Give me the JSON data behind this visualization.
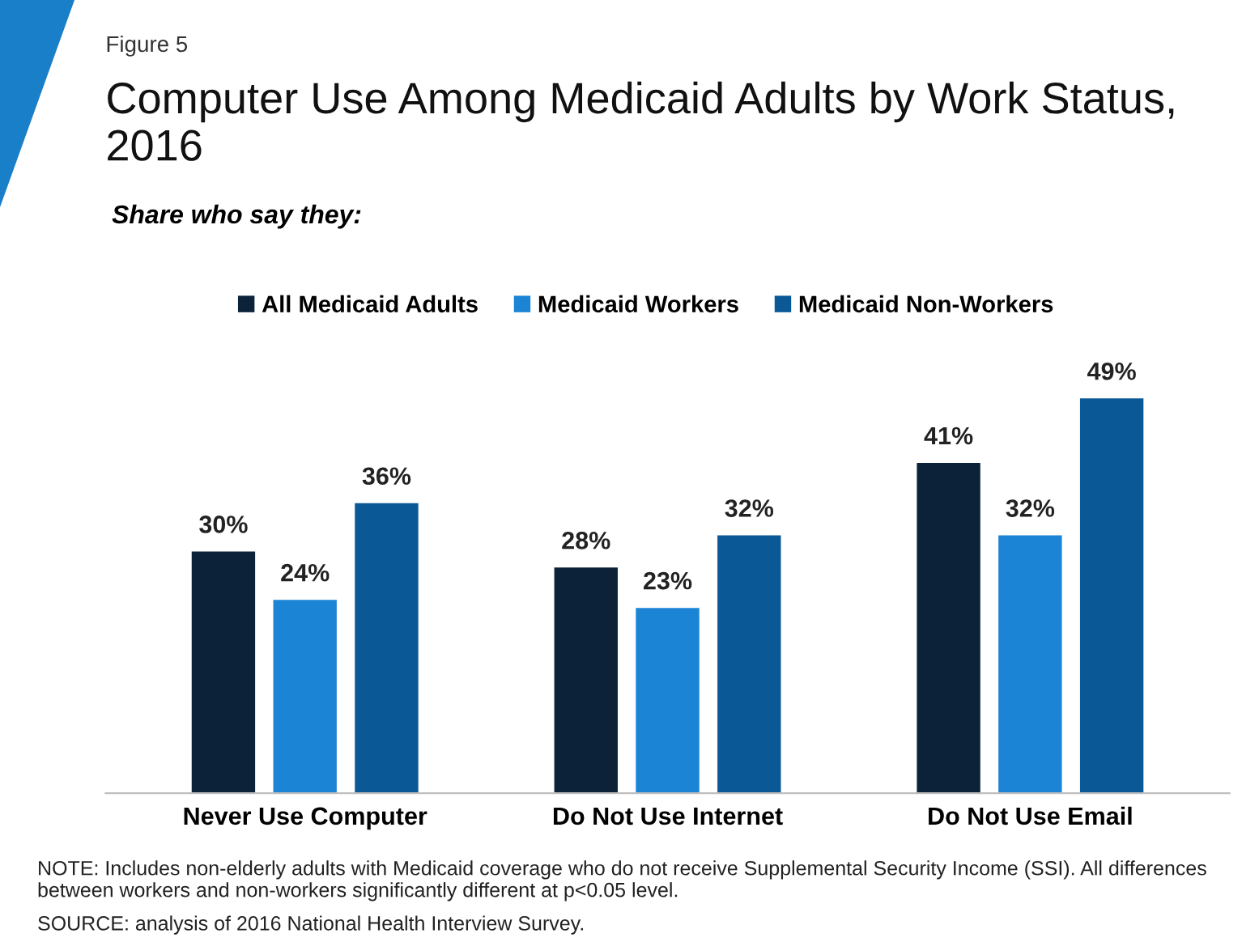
{
  "chart_data": {
    "type": "bar",
    "title": "Computer Use Among Medicaid Adults by Work Status, 2016",
    "subtitle": "Share who say they:",
    "categories": [
      "Never Use Computer",
      "Do Not Use Internet",
      "Do Not Use Email"
    ],
    "series": [
      {
        "name": "All Medicaid Adults",
        "color": "#0b2239",
        "values": [
          30,
          28,
          41
        ],
        "value_labels": [
          "30%",
          "28%",
          "41%"
        ]
      },
      {
        "name": "Medicaid Workers",
        "color": "#1b84d4",
        "values": [
          24,
          23,
          32
        ],
        "value_labels": [
          "24%",
          "23%",
          "32%"
        ]
      },
      {
        "name": "Medicaid Non-Workers",
        "color": "#0b5896",
        "values": [
          36,
          32,
          49
        ],
        "value_labels": [
          "36%",
          "32%",
          "49%"
        ]
      }
    ],
    "legend": "top",
    "annotations": [
      "Figure 5",
      "NOTE: Includes non-elderly adults with Medicaid coverage who do not receive Supplemental Security Income (SSI). All differences between workers and non-workers significantly different at p<0.05 level.",
      "SOURCE: analysis of 2016 National Health Interview Survey."
    ]
  }
}
